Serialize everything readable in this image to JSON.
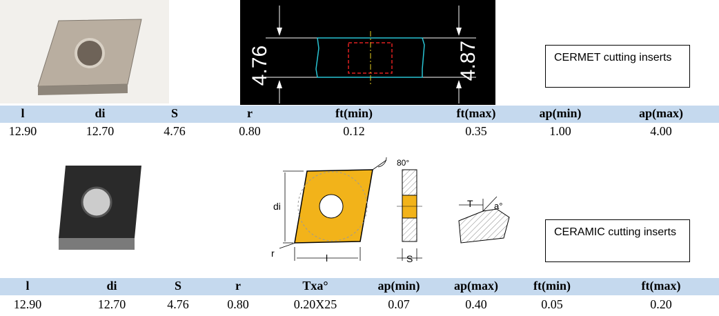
{
  "sections": [
    {
      "drawing_labels": [
        "4.76",
        "4.87"
      ],
      "label": "CERMET cutting inserts",
      "table": {
        "headers": [
          "l",
          "di",
          "S",
          "r",
          "ft(min)",
          "ft(max)",
          "ap(min)",
          "ap(max)"
        ],
        "rows": [
          [
            "12.90",
            "12.70",
            "4.76",
            "0.80",
            "0.12",
            "0.35",
            "1.00",
            "4.00"
          ]
        ]
      }
    },
    {
      "drawing_labels": [
        "80°",
        "di",
        "r",
        "l",
        "S",
        "T",
        "a°"
      ],
      "label": "CERAMIC cutting inserts",
      "table": {
        "headers": [
          "l",
          "di",
          "S",
          "r",
          "Txa°",
          "ap(min)",
          "ap(max)",
          "ft(min)",
          "ft(max)"
        ],
        "rows": [
          [
            "12.90",
            "12.70",
            "4.76",
            "0.80",
            "0.20X25",
            "0.07",
            "0.40",
            "0.05",
            "0.20"
          ]
        ]
      }
    }
  ]
}
